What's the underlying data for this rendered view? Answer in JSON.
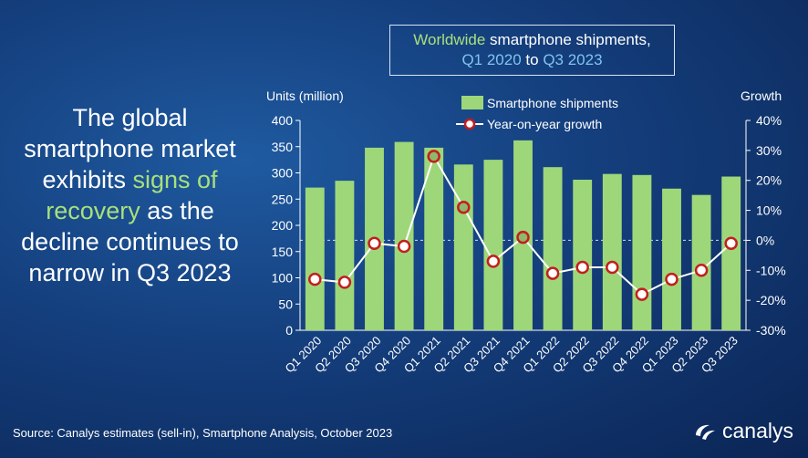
{
  "headline": {
    "part1": "The global smartphone market exhibits ",
    "highlight": "signs of recovery",
    "part2": " as the decline continues to narrow in Q3 2023"
  },
  "title": {
    "w1": "Worldwide",
    "t1": " smartphone shipments,",
    "q1": "Q1 2020",
    "to": " to ",
    "q2": "Q3 2023"
  },
  "source": "Source: Canalys estimates (sell-in), Smartphone Analysis, October 2023",
  "logo_text": "canalys",
  "colors": {
    "bar": "#9ed77a",
    "line": "#ffffff",
    "dot_fill": "#ffffff",
    "dot_stroke": "#c41e1e",
    "positive_fill": "#8fb86a"
  },
  "chart_data": {
    "type": "bar",
    "categories": [
      "Q1 2020",
      "Q2 2020",
      "Q3 2020",
      "Q4 2020",
      "Q1 2021",
      "Q2 2021",
      "Q3 2021",
      "Q4 2021",
      "Q1 2022",
      "Q2 2022",
      "Q3 2022",
      "Q4 2022",
      "Q1 2023",
      "Q2 2023",
      "Q3 2023"
    ],
    "series": [
      {
        "name": "Smartphone shipments",
        "axis": "left",
        "kind": "bar",
        "values": [
          272,
          285,
          348,
          359,
          348,
          316,
          325,
          362,
          311,
          287,
          298,
          296,
          270,
          258,
          293
        ]
      },
      {
        "name": "Year-on-year growth",
        "axis": "right",
        "kind": "line",
        "values": [
          -13,
          -14,
          -1,
          -2,
          28,
          11,
          -7,
          1,
          -11,
          -9,
          -9,
          -18,
          -13,
          -10,
          -1
        ]
      }
    ],
    "ylabel": "Units (million)",
    "y2label": "Growth",
    "ylim": [
      0,
      400
    ],
    "yticks": [
      0,
      50,
      100,
      150,
      200,
      250,
      300,
      350,
      400
    ],
    "y2lim": [
      -30,
      40
    ],
    "y2ticks": [
      "-30%",
      "-20%",
      "-10%",
      "0%",
      "10%",
      "20%",
      "30%",
      "40%"
    ],
    "legend": "top-center",
    "grid": false
  }
}
